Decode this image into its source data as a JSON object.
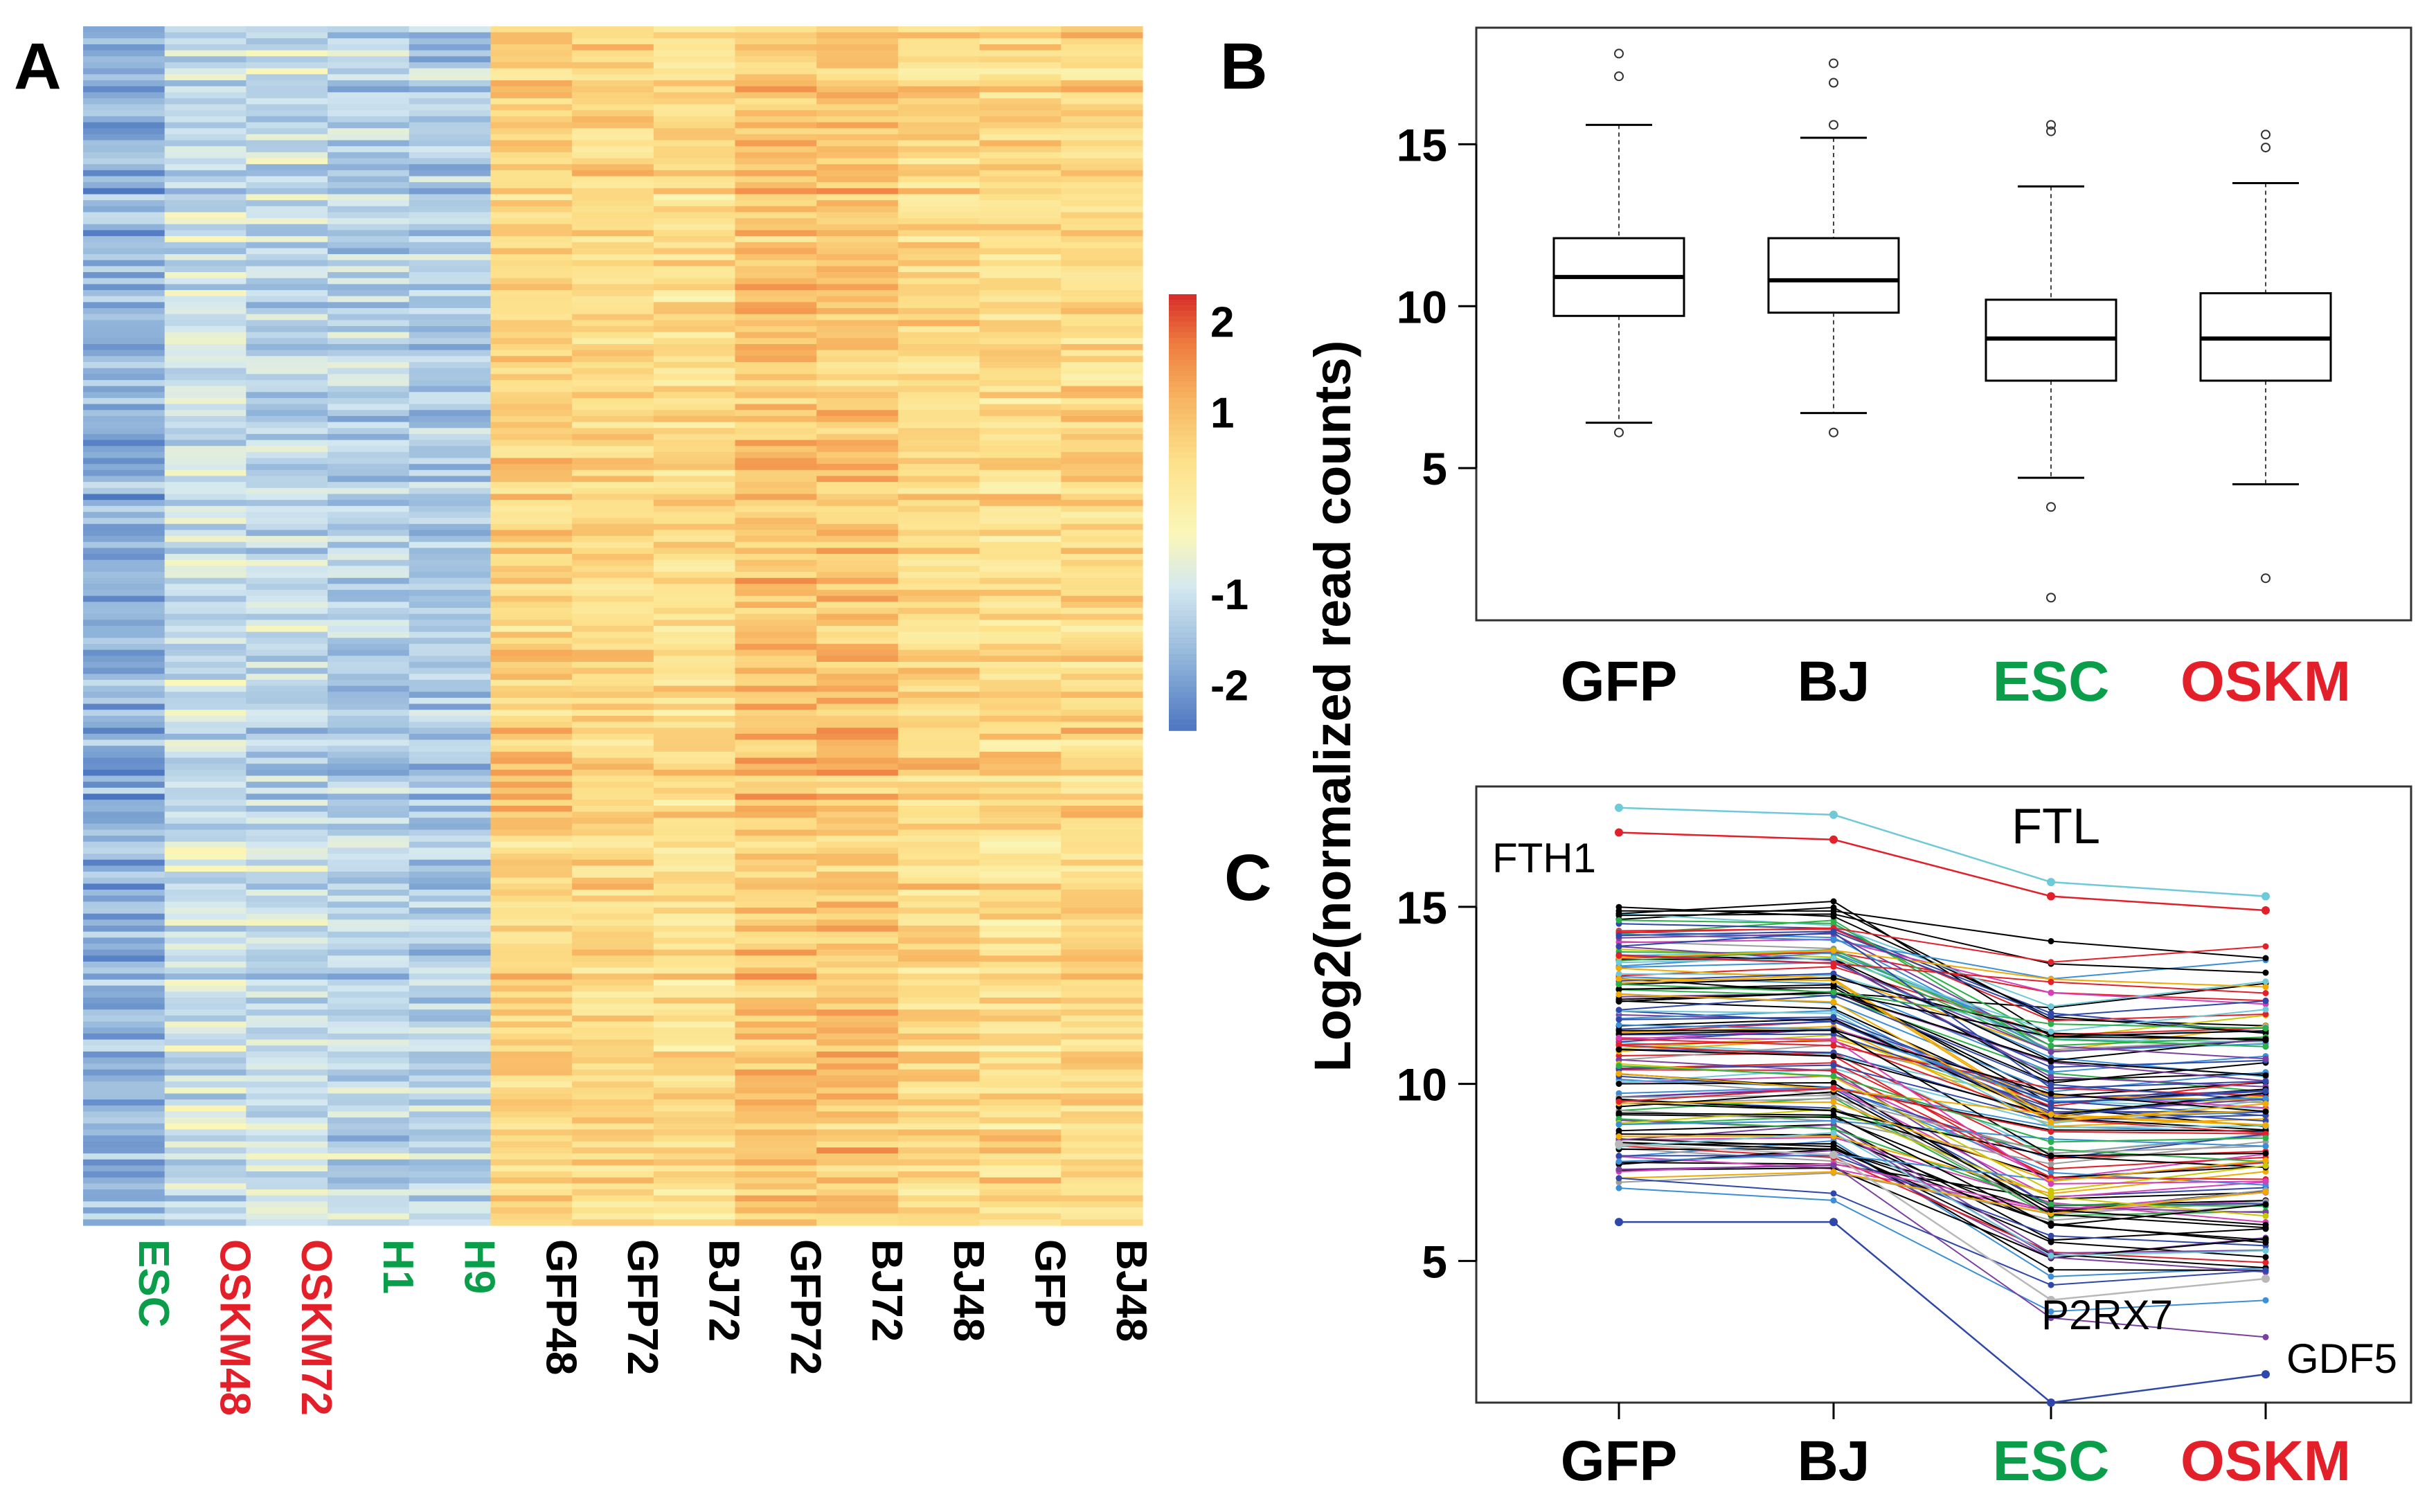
{
  "panels": {
    "a": "A",
    "b": "B",
    "c": "C"
  },
  "colors": {
    "esc_green": "#0a9e4a",
    "oskm_red": "#e3202a",
    "black": "#000000",
    "heat_low": "#4a74c0",
    "heat_mid": "#fbf7b8",
    "heat_high": "#d7302a"
  },
  "chart_data": [
    {
      "type": "heatmap",
      "panel": "A",
      "columns": [
        {
          "label": "ESC",
          "group": "esc",
          "mean": -1.7
        },
        {
          "label": "OSKM48",
          "group": "oskm",
          "mean": -1.0
        },
        {
          "label": "OSKM72",
          "group": "oskm",
          "mean": -1.1
        },
        {
          "label": "H1",
          "group": "esc",
          "mean": -1.2
        },
        {
          "label": "H9",
          "group": "esc",
          "mean": -1.3
        },
        {
          "label": "GFP48",
          "group": "ctrl",
          "mean": 0.7
        },
        {
          "label": "GFP72",
          "group": "ctrl",
          "mean": 0.6
        },
        {
          "label": "BJ72",
          "group": "ctrl",
          "mean": 0.5
        },
        {
          "label": "GFP72",
          "group": "ctrl",
          "mean": 0.9
        },
        {
          "label": "BJ72",
          "group": "ctrl",
          "mean": 0.9
        },
        {
          "label": "BJ48",
          "group": "ctrl",
          "mean": 0.6
        },
        {
          "label": "GFP",
          "group": "ctrl",
          "mean": 0.5
        },
        {
          "label": "BJ48",
          "group": "ctrl",
          "mean": 0.6
        }
      ],
      "row_count": 200,
      "colorbar": {
        "ticks": [
          "2",
          "1",
          "-1",
          "-2"
        ],
        "range": [
          -2.5,
          2.3
        ]
      }
    },
    {
      "type": "box",
      "panel": "B",
      "ylabel": "Log2(normalized read counts)",
      "yticks": [
        5,
        10,
        15
      ],
      "ylim": [
        0.3,
        18.6
      ],
      "groups": [
        {
          "label": "GFP",
          "color_key": "black",
          "q1": 9.7,
          "median": 10.9,
          "q3": 12.1,
          "whisker_low": 6.4,
          "whisker_high": 15.6,
          "outliers": [
            17.1,
            17.8,
            6.1
          ]
        },
        {
          "label": "BJ",
          "color_key": "black",
          "q1": 9.8,
          "median": 10.8,
          "q3": 12.1,
          "whisker_low": 6.7,
          "whisker_high": 15.2,
          "outliers": [
            16.9,
            17.5,
            15.6,
            6.1
          ]
        },
        {
          "label": "ESC",
          "color_key": "esc_green",
          "q1": 7.7,
          "median": 9.0,
          "q3": 10.2,
          "whisker_low": 4.7,
          "whisker_high": 13.7,
          "outliers": [
            15.6,
            15.4,
            3.8,
            1.0
          ]
        },
        {
          "label": "OSKM",
          "color_key": "oskm_red",
          "q1": 7.7,
          "median": 9.0,
          "q3": 10.4,
          "whisker_low": 4.5,
          "whisker_high": 13.8,
          "outliers": [
            15.3,
            14.9,
            1.6
          ]
        }
      ]
    },
    {
      "type": "line",
      "panel": "C",
      "categories": [
        {
          "label": "GFP",
          "color_key": "black"
        },
        {
          "label": "BJ",
          "color_key": "black"
        },
        {
          "label": "ESC",
          "color_key": "esc_green"
        },
        {
          "label": "OSKM",
          "color_key": "oskm_red"
        }
      ],
      "yticks": [
        5,
        10,
        15
      ],
      "ylim": [
        1.0,
        18.4
      ],
      "series_count": 140,
      "highlighted": [
        {
          "name": "FTL",
          "color": "#6ec9d8",
          "values": [
            17.8,
            17.6,
            15.7,
            15.3
          ]
        },
        {
          "name": "FTH1",
          "color": "#e3202a",
          "values": [
            17.1,
            16.9,
            15.3,
            14.9
          ]
        },
        {
          "name": "P2RX7",
          "color": "#b8b8b8",
          "values": [
            8.3,
            8.0,
            3.9,
            4.5
          ]
        },
        {
          "name": "GDF5",
          "color": "#2f47a8",
          "values": [
            6.1,
            6.1,
            1.0,
            1.8
          ]
        }
      ],
      "gene_labels": [
        "FTL",
        "FTH1",
        "P2RX7",
        "GDF5"
      ]
    }
  ]
}
